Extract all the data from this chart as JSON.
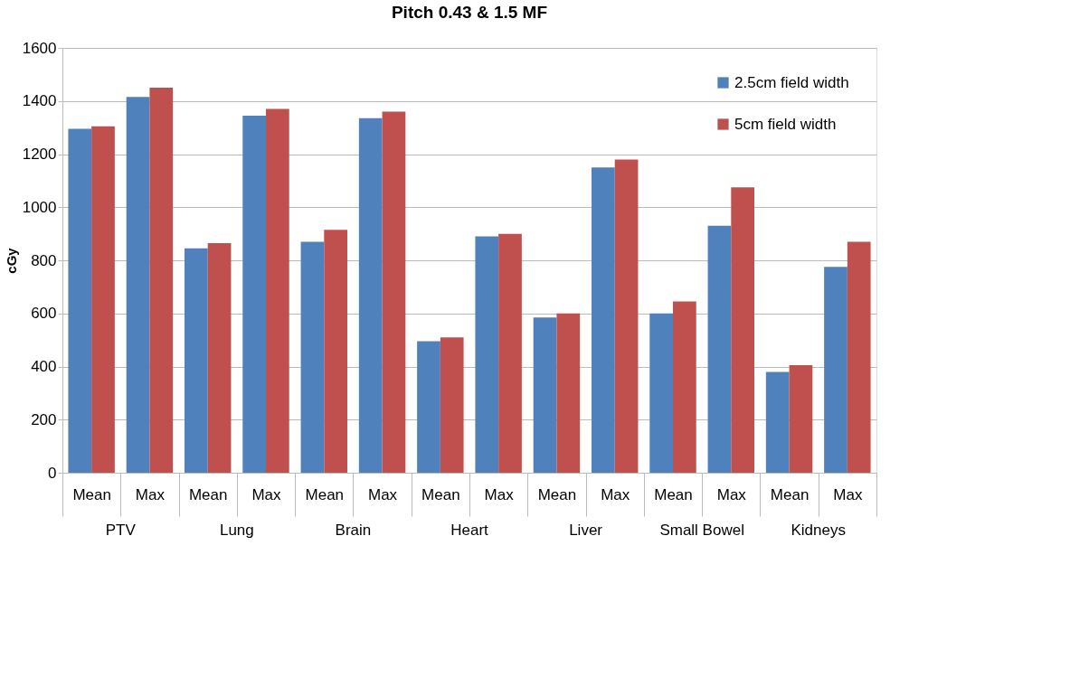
{
  "chart_data": {
    "type": "bar",
    "title": "Pitch 0.43 & 1.5 MF",
    "ylabel": "cGy",
    "categories": [
      "Mean",
      "Max",
      "Mean",
      "Max",
      "Mean",
      "Max",
      "Mean",
      "Max",
      "Mean",
      "Max",
      "Mean",
      "Max",
      "Mean",
      "Max"
    ],
    "annotations": [
      "PTV",
      "Lung",
      "Brain",
      "Heart",
      "Liver",
      "Small Bowel",
      "Kidneys"
    ],
    "series": [
      {
        "name": "2.5cm field width",
        "color": "#4f81bd",
        "values": [
          1295,
          1415,
          845,
          1345,
          870,
          1335,
          495,
          890,
          585,
          1150,
          600,
          930,
          380,
          775
        ]
      },
      {
        "name": "5cm field width",
        "color": "#c0504d",
        "values": [
          1305,
          1450,
          865,
          1370,
          915,
          1360,
          510,
          900,
          600,
          1180,
          645,
          1075,
          405,
          870
        ]
      }
    ],
    "ylim": [
      0,
      1600
    ],
    "yticks": [
      0,
      200,
      400,
      600,
      800,
      1000,
      1200,
      1400,
      1600
    ],
    "grid": "y",
    "legend": "top right"
  }
}
